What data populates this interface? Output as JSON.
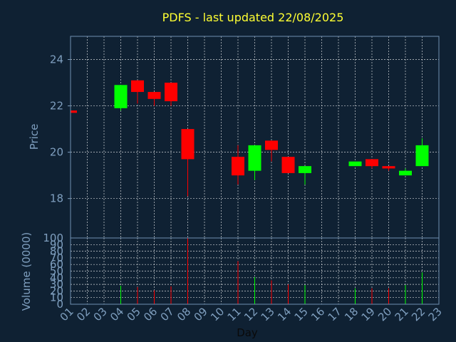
{
  "colors": {
    "background": "#0f2133",
    "up": "#00ff00",
    "down": "#ff0000",
    "title": "#ffff33",
    "axis_text": "#7f9fbf",
    "grid": "#ffffff"
  },
  "chart_data": [
    {
      "type": "candlestick",
      "title": "PDFS - last updated 22/08/2025",
      "ylabel": "Price",
      "xlabel": "",
      "ylim": [
        16.3,
        25
      ],
      "yticks": [
        "18",
        "20",
        "22",
        "24"
      ],
      "grid": true,
      "x": [
        "01",
        "02",
        "03",
        "04",
        "05",
        "06",
        "07",
        "08",
        "09",
        "10",
        "11",
        "12",
        "13",
        "14",
        "15",
        "16",
        "17",
        "18",
        "19",
        "20",
        "21",
        "22",
        "23"
      ],
      "candles": [
        {
          "x": "01",
          "open": 21.8,
          "high": 21.8,
          "low": 21.7,
          "close": 21.7
        },
        {
          "x": "04",
          "open": 21.9,
          "high": 22.9,
          "low": 21.8,
          "close": 22.9
        },
        {
          "x": "05",
          "open": 23.1,
          "high": 23.1,
          "low": 22.1,
          "close": 22.6
        },
        {
          "x": "06",
          "open": 22.6,
          "high": 22.6,
          "low": 22.0,
          "close": 22.3
        },
        {
          "x": "07",
          "open": 23.0,
          "high": 23.0,
          "low": 22.0,
          "close": 22.2
        },
        {
          "x": "08",
          "open": 21.0,
          "high": 21.0,
          "low": 18.1,
          "close": 19.7
        },
        {
          "x": "11",
          "open": 19.8,
          "high": 20.3,
          "low": 18.6,
          "close": 19.0
        },
        {
          "x": "12",
          "open": 19.2,
          "high": 20.3,
          "low": 18.8,
          "close": 20.3
        },
        {
          "x": "13",
          "open": 20.5,
          "high": 20.5,
          "low": 19.6,
          "close": 20.1
        },
        {
          "x": "14",
          "open": 19.8,
          "high": 19.8,
          "low": 19.1,
          "close": 19.1
        },
        {
          "x": "15",
          "open": 19.1,
          "high": 19.4,
          "low": 18.6,
          "close": 19.4
        },
        {
          "x": "18",
          "open": 19.4,
          "high": 19.6,
          "low": 19.4,
          "close": 19.6
        },
        {
          "x": "19",
          "open": 19.7,
          "high": 19.7,
          "low": 19.3,
          "close": 19.4
        },
        {
          "x": "20",
          "open": 19.4,
          "high": 19.4,
          "low": 19.2,
          "close": 19.3
        },
        {
          "x": "21",
          "open": 19.0,
          "high": 19.3,
          "low": 19.0,
          "close": 19.2
        },
        {
          "x": "22",
          "open": 19.4,
          "high": 20.6,
          "low": 19.4,
          "close": 20.3
        }
      ]
    },
    {
      "type": "bar",
      "ylabel": "Volume (0000)",
      "xlabel": "Day",
      "ylim": [
        0,
        100
      ],
      "yticks": [
        "0",
        "10",
        "20",
        "30",
        "40",
        "50",
        "60",
        "70",
        "80",
        "90",
        "100"
      ],
      "grid": true,
      "x": [
        "01",
        "02",
        "03",
        "04",
        "05",
        "06",
        "07",
        "08",
        "09",
        "10",
        "11",
        "12",
        "13",
        "14",
        "15",
        "16",
        "17",
        "18",
        "19",
        "20",
        "21",
        "22",
        "23"
      ],
      "bars": [
        {
          "x": "04",
          "value": 28,
          "direction": "up"
        },
        {
          "x": "05",
          "value": 26,
          "direction": "down"
        },
        {
          "x": "06",
          "value": 21,
          "direction": "down"
        },
        {
          "x": "07",
          "value": 27,
          "direction": "down"
        },
        {
          "x": "08",
          "value": 100,
          "direction": "down"
        },
        {
          "x": "11",
          "value": 65,
          "direction": "down"
        },
        {
          "x": "12",
          "value": 41,
          "direction": "up"
        },
        {
          "x": "13",
          "value": 36,
          "direction": "down"
        },
        {
          "x": "14",
          "value": 30,
          "direction": "down"
        },
        {
          "x": "15",
          "value": 29,
          "direction": "up"
        },
        {
          "x": "18",
          "value": 24,
          "direction": "up"
        },
        {
          "x": "19",
          "value": 24,
          "direction": "down"
        },
        {
          "x": "20",
          "value": 24,
          "direction": "down"
        },
        {
          "x": "21",
          "value": 29,
          "direction": "up"
        },
        {
          "x": "22",
          "value": 48,
          "direction": "up"
        }
      ]
    }
  ]
}
